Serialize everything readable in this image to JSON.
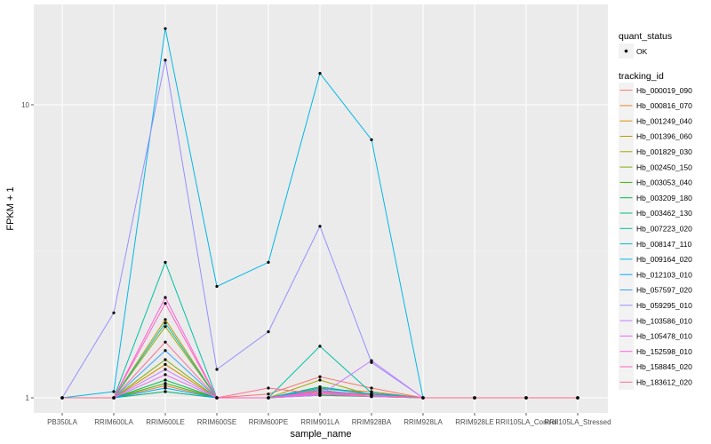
{
  "chart_data": {
    "type": "line",
    "yscale": "log",
    "ylim": [
      0.9,
      19.5
    ],
    "y_ticks": [
      {
        "value": 1,
        "label": "1"
      },
      {
        "value": 10,
        "label": "10"
      }
    ],
    "xlabel": "sample_name",
    "ylabel": "FPKM + 1",
    "grid": true,
    "legend_position": "right",
    "categories": [
      "PB350LA",
      "RRIM600LA",
      "RRIM600LE",
      "RRIM600SE",
      "RRIM600PE",
      "RRIM901LA",
      "RRIM928BA",
      "RRIM928LA",
      "RRIM928LE",
      "RRII105LA_Control",
      "RRII105LA_Stressed"
    ],
    "point_legend": {
      "title": "quant_status",
      "entries": [
        {
          "label": "OK",
          "color": "#000000"
        }
      ]
    },
    "color_legend_title": "tracking_id",
    "series": [
      {
        "name": "Hb_000019_090",
        "color": "#F8766D",
        "values": [
          1,
          1,
          1.05,
          1,
          1.03,
          1.18,
          1.08,
          1,
          1,
          1,
          1
        ]
      },
      {
        "name": "Hb_000816_070",
        "color": "#EA8331",
        "values": [
          1,
          1,
          1.1,
          1,
          1,
          1.07,
          1.05,
          1,
          1,
          1,
          1
        ]
      },
      {
        "name": "Hb_001249_040",
        "color": "#D89000",
        "values": [
          1,
          1,
          1.3,
          1,
          1,
          1.05,
          1.03,
          1,
          1,
          1,
          1
        ]
      },
      {
        "name": "Hb_001396_060",
        "color": "#C09B00",
        "values": [
          1,
          1,
          1.85,
          1,
          1,
          1.03,
          1.02,
          1,
          1,
          1,
          1
        ]
      },
      {
        "name": "Hb_001829_030",
        "color": "#A3A500",
        "values": [
          1,
          1,
          1.75,
          1,
          1,
          1.15,
          1.02,
          1,
          1,
          1,
          1
        ]
      },
      {
        "name": "Hb_002450_150",
        "color": "#7CAE00",
        "values": [
          1,
          1,
          1.35,
          1,
          1,
          1.02,
          1.01,
          1,
          1,
          1,
          1
        ]
      },
      {
        "name": "Hb_003053_040",
        "color": "#39B600",
        "values": [
          1,
          1,
          1.12,
          1,
          1,
          1.06,
          1.02,
          1,
          1,
          1,
          1
        ]
      },
      {
        "name": "Hb_003209_180",
        "color": "#00BB4E",
        "values": [
          1,
          1,
          1.15,
          1,
          1,
          1.09,
          1.03,
          1,
          1,
          1,
          1
        ]
      },
      {
        "name": "Hb_003462_130",
        "color": "#00BF7D",
        "values": [
          1,
          1,
          1.05,
          1,
          1,
          1.02,
          1.01,
          1,
          1,
          1,
          1
        ]
      },
      {
        "name": "Hb_007223_020",
        "color": "#00C1A3",
        "values": [
          1,
          1,
          2.9,
          1,
          1,
          1.5,
          1.04,
          1,
          1,
          1,
          1
        ]
      },
      {
        "name": "Hb_008147_110",
        "color": "#00BFC4",
        "values": [
          1,
          1,
          1.8,
          1,
          1,
          1.04,
          1.02,
          1,
          1,
          1,
          1
        ]
      },
      {
        "name": "Hb_009164_020",
        "color": "#00B8E7",
        "values": [
          1,
          1.05,
          18.2,
          2.4,
          2.9,
          12.8,
          7.6,
          1,
          1,
          1,
          1
        ]
      },
      {
        "name": "Hb_012103_010",
        "color": "#00A9FF",
        "values": [
          1,
          1,
          1.08,
          1,
          1,
          1.08,
          1.03,
          1,
          1,
          1,
          1
        ]
      },
      {
        "name": "Hb_057597_020",
        "color": "#35A2FF",
        "values": [
          1,
          1,
          1.45,
          1,
          1,
          1.06,
          1.02,
          1,
          1,
          1,
          1
        ]
      },
      {
        "name": "Hb_059295_010",
        "color": "#9590FF",
        "values": [
          1,
          1.95,
          14.2,
          1.25,
          1.68,
          3.85,
          1.32,
          1,
          1,
          1,
          1
        ]
      },
      {
        "name": "Hb_103586_010",
        "color": "#C77CFF",
        "values": [
          1,
          1,
          1.25,
          1,
          1,
          1.02,
          1.34,
          1,
          1,
          1,
          1
        ]
      },
      {
        "name": "Hb_105478_010",
        "color": "#E76BF3",
        "values": [
          1,
          1,
          1.2,
          1,
          1,
          1.03,
          1.01,
          1,
          1,
          1,
          1
        ]
      },
      {
        "name": "Hb_152598_010",
        "color": "#FA62DB",
        "values": [
          1,
          1,
          2.2,
          1,
          1,
          1.04,
          1.02,
          1,
          1,
          1,
          1
        ]
      },
      {
        "name": "Hb_158845_020",
        "color": "#FF62BC",
        "values": [
          1,
          1,
          2.1,
          1,
          1,
          1.05,
          1.02,
          1,
          1,
          1,
          1
        ]
      },
      {
        "name": "Hb_183612_020",
        "color": "#FF6C91",
        "values": [
          1,
          1,
          1.55,
          1,
          1.08,
          1.03,
          1.02,
          1,
          1,
          1,
          1
        ]
      }
    ]
  }
}
